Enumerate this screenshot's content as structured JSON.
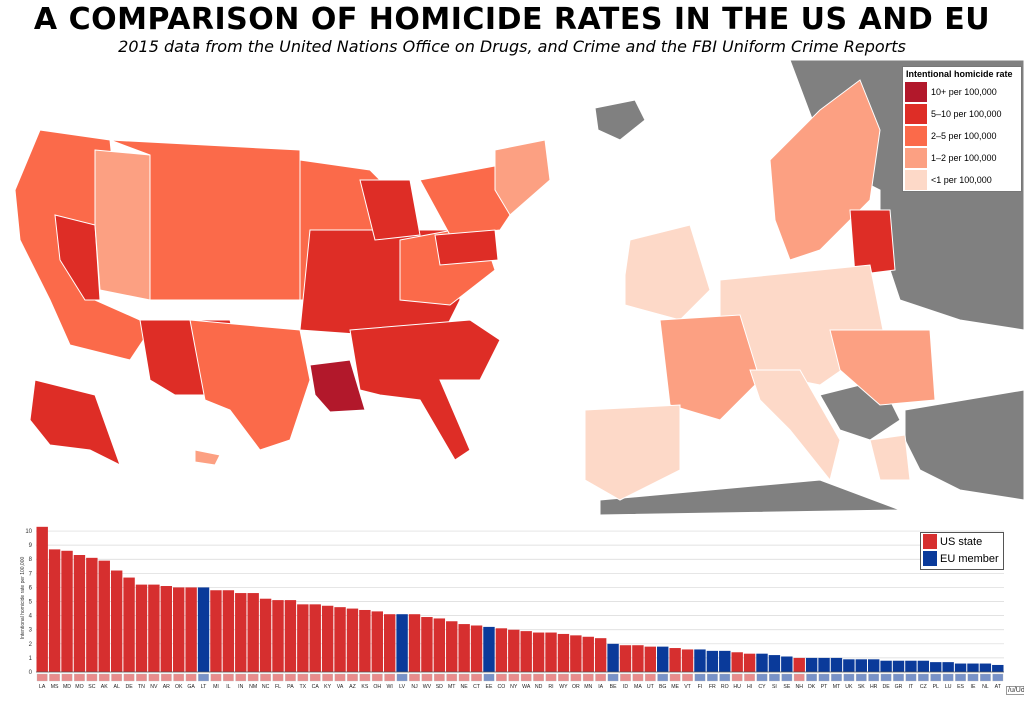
{
  "title": "A COMPARISON OF HOMICIDE RATES IN THE US AND EU",
  "subtitle": "2015 data from the United Nations Office on Drugs, and Crime and the FBI Uniform Crime Reports",
  "map_legend": {
    "title": "Intentional homicide rate",
    "items": [
      {
        "label": "10+ per 100,000",
        "color": "#b2182b"
      },
      {
        "label": "5–10 per 100,000",
        "color": "#de2d26"
      },
      {
        "label": "2–5 per 100,000",
        "color": "#fb6a4a"
      },
      {
        "label": "1–2 per 100,000",
        "color": "#fca082"
      },
      {
        "label": "<1 per 100,000",
        "color": "#fdd9c8"
      }
    ],
    "non_member_color": "#808080"
  },
  "chart_legend": {
    "items": [
      {
        "label": "US state",
        "color": "#d62f2f"
      },
      {
        "label": "EU member",
        "color": "#0a3a9a"
      }
    ]
  },
  "credit": "/u/Udzu",
  "chart_data": {
    "type": "bar",
    "ylabel": "Intentional homicide rate per 100,000",
    "ylim": [
      0,
      10.5
    ],
    "yticks": [
      0,
      1,
      2,
      3,
      4,
      5,
      6,
      7,
      8,
      9,
      10
    ],
    "bars": [
      {
        "label": "LA",
        "value": 10.3,
        "group": "US"
      },
      {
        "label": "MS",
        "value": 8.7,
        "group": "US"
      },
      {
        "label": "MD",
        "value": 8.6,
        "group": "US"
      },
      {
        "label": "MO",
        "value": 8.3,
        "group": "US"
      },
      {
        "label": "SC",
        "value": 8.1,
        "group": "US"
      },
      {
        "label": "AK",
        "value": 7.9,
        "group": "US"
      },
      {
        "label": "AL",
        "value": 7.2,
        "group": "US"
      },
      {
        "label": "DE",
        "value": 6.7,
        "group": "US"
      },
      {
        "label": "TN",
        "value": 6.2,
        "group": "US"
      },
      {
        "label": "NV",
        "value": 6.2,
        "group": "US"
      },
      {
        "label": "AR",
        "value": 6.1,
        "group": "US"
      },
      {
        "label": "OK",
        "value": 6.0,
        "group": "US"
      },
      {
        "label": "GA",
        "value": 6.0,
        "group": "US"
      },
      {
        "label": "LT",
        "value": 6.0,
        "group": "EU"
      },
      {
        "label": "MI",
        "value": 5.8,
        "group": "US"
      },
      {
        "label": "IL",
        "value": 5.8,
        "group": "US"
      },
      {
        "label": "IN",
        "value": 5.6,
        "group": "US"
      },
      {
        "label": "NM",
        "value": 5.6,
        "group": "US"
      },
      {
        "label": "NC",
        "value": 5.2,
        "group": "US"
      },
      {
        "label": "FL",
        "value": 5.1,
        "group": "US"
      },
      {
        "label": "PA",
        "value": 5.1,
        "group": "US"
      },
      {
        "label": "TX",
        "value": 4.8,
        "group": "US"
      },
      {
        "label": "CA",
        "value": 4.8,
        "group": "US"
      },
      {
        "label": "KY",
        "value": 4.7,
        "group": "US"
      },
      {
        "label": "VA",
        "value": 4.6,
        "group": "US"
      },
      {
        "label": "AZ",
        "value": 4.5,
        "group": "US"
      },
      {
        "label": "KS",
        "value": 4.4,
        "group": "US"
      },
      {
        "label": "OH",
        "value": 4.3,
        "group": "US"
      },
      {
        "label": "WI",
        "value": 4.1,
        "group": "US"
      },
      {
        "label": "LV",
        "value": 4.1,
        "group": "EU"
      },
      {
        "label": "NJ",
        "value": 4.1,
        "group": "US"
      },
      {
        "label": "WV",
        "value": 3.9,
        "group": "US"
      },
      {
        "label": "SD",
        "value": 3.8,
        "group": "US"
      },
      {
        "label": "MT",
        "value": 3.6,
        "group": "US"
      },
      {
        "label": "NE",
        "value": 3.4,
        "group": "US"
      },
      {
        "label": "CT",
        "value": 3.3,
        "group": "US"
      },
      {
        "label": "EE",
        "value": 3.2,
        "group": "EU"
      },
      {
        "label": "CO",
        "value": 3.1,
        "group": "US"
      },
      {
        "label": "NY",
        "value": 3.0,
        "group": "US"
      },
      {
        "label": "WA",
        "value": 2.9,
        "group": "US"
      },
      {
        "label": "ND",
        "value": 2.8,
        "group": "US"
      },
      {
        "label": "RI",
        "value": 2.8,
        "group": "US"
      },
      {
        "label": "WY",
        "value": 2.7,
        "group": "US"
      },
      {
        "label": "OR",
        "value": 2.6,
        "group": "US"
      },
      {
        "label": "MN",
        "value": 2.5,
        "group": "US"
      },
      {
        "label": "IA",
        "value": 2.4,
        "group": "US"
      },
      {
        "label": "BE",
        "value": 2.0,
        "group": "EU"
      },
      {
        "label": "ID",
        "value": 1.9,
        "group": "US"
      },
      {
        "label": "MA",
        "value": 1.9,
        "group": "US"
      },
      {
        "label": "UT",
        "value": 1.8,
        "group": "US"
      },
      {
        "label": "BG",
        "value": 1.8,
        "group": "EU"
      },
      {
        "label": "ME",
        "value": 1.7,
        "group": "US"
      },
      {
        "label": "VT",
        "value": 1.6,
        "group": "US"
      },
      {
        "label": "FI",
        "value": 1.6,
        "group": "EU"
      },
      {
        "label": "FR",
        "value": 1.5,
        "group": "EU"
      },
      {
        "label": "RO",
        "value": 1.5,
        "group": "EU"
      },
      {
        "label": "HU",
        "value": 1.4,
        "group": "US"
      },
      {
        "label": "HI",
        "value": 1.3,
        "group": "US"
      },
      {
        "label": "CY",
        "value": 1.3,
        "group": "EU"
      },
      {
        "label": "SI",
        "value": 1.2,
        "group": "EU"
      },
      {
        "label": "SE",
        "value": 1.1,
        "group": "EU"
      },
      {
        "label": "NH",
        "value": 1.0,
        "group": "US"
      },
      {
        "label": "DK",
        "value": 1.0,
        "group": "EU"
      },
      {
        "label": "PT",
        "value": 1.0,
        "group": "EU"
      },
      {
        "label": "MT",
        "value": 1.0,
        "group": "EU"
      },
      {
        "label": "UK",
        "value": 0.9,
        "group": "EU"
      },
      {
        "label": "SK",
        "value": 0.9,
        "group": "EU"
      },
      {
        "label": "HR",
        "value": 0.9,
        "group": "EU"
      },
      {
        "label": "DE",
        "value": 0.8,
        "group": "EU"
      },
      {
        "label": "GR",
        "value": 0.8,
        "group": "EU"
      },
      {
        "label": "IT",
        "value": 0.8,
        "group": "EU"
      },
      {
        "label": "CZ",
        "value": 0.8,
        "group": "EU"
      },
      {
        "label": "PL",
        "value": 0.7,
        "group": "EU"
      },
      {
        "label": "LU",
        "value": 0.7,
        "group": "EU"
      },
      {
        "label": "ES",
        "value": 0.6,
        "group": "EU"
      },
      {
        "label": "IE",
        "value": 0.6,
        "group": "EU"
      },
      {
        "label": "NL",
        "value": 0.6,
        "group": "EU"
      },
      {
        "label": "AT",
        "value": 0.5,
        "group": "EU"
      }
    ]
  }
}
